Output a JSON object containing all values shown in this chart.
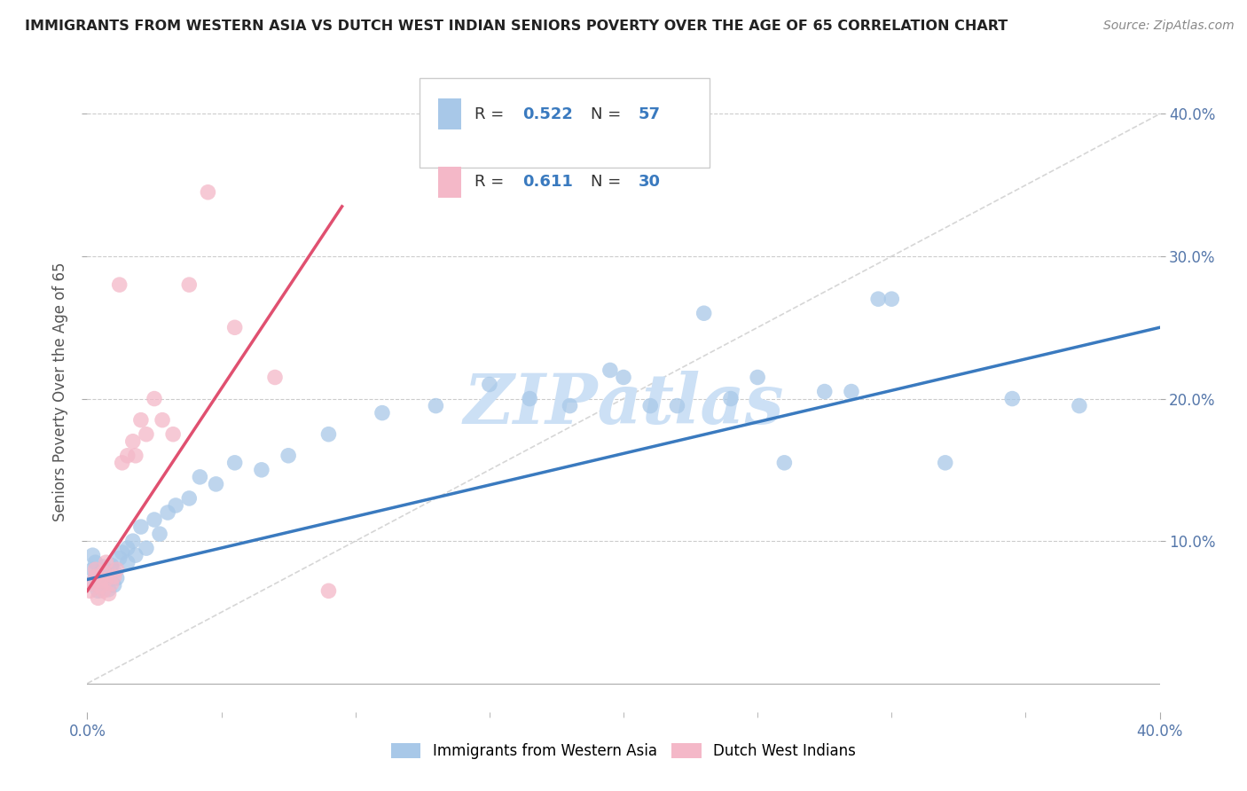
{
  "title": "IMMIGRANTS FROM WESTERN ASIA VS DUTCH WEST INDIAN SENIORS POVERTY OVER THE AGE OF 65 CORRELATION CHART",
  "source": "Source: ZipAtlas.com",
  "ylabel": "Seniors Poverty Over the Age of 65",
  "xlim": [
    0.0,
    0.4
  ],
  "ylim": [
    -0.02,
    0.43
  ],
  "x_ticks_major": [
    0.0,
    0.4
  ],
  "x_ticks_minor": [
    0.05,
    0.1,
    0.15,
    0.2,
    0.25,
    0.3,
    0.35
  ],
  "x_tick_labels_major": [
    "0.0%",
    "40.0%"
  ],
  "y_ticks": [
    0.1,
    0.2,
    0.3,
    0.4
  ],
  "y_tick_labels_left": [
    "",
    "",
    "",
    ""
  ],
  "y_tick_labels_right": [
    "10.0%",
    "20.0%",
    "30.0%",
    "40.0%"
  ],
  "color_blue": "#a8c8e8",
  "color_pink": "#f4b8c8",
  "color_line_blue": "#3a7abf",
  "color_line_pink": "#e05070",
  "color_diag": "#cccccc",
  "watermark_color": "#cce0f5",
  "blue_scatter_x": [
    0.001,
    0.002,
    0.002,
    0.003,
    0.003,
    0.004,
    0.004,
    0.005,
    0.005,
    0.006,
    0.006,
    0.007,
    0.008,
    0.008,
    0.009,
    0.01,
    0.01,
    0.011,
    0.012,
    0.013,
    0.015,
    0.015,
    0.017,
    0.018,
    0.02,
    0.022,
    0.025,
    0.027,
    0.03,
    0.033,
    0.038,
    0.042,
    0.048,
    0.055,
    0.065,
    0.075,
    0.09,
    0.11,
    0.13,
    0.15,
    0.165,
    0.18,
    0.195,
    0.21,
    0.23,
    0.25,
    0.275,
    0.3,
    0.32,
    0.345,
    0.37,
    0.295,
    0.285,
    0.26,
    0.24,
    0.22,
    0.2
  ],
  "blue_scatter_y": [
    0.07,
    0.08,
    0.09,
    0.075,
    0.085,
    0.065,
    0.072,
    0.068,
    0.078,
    0.073,
    0.082,
    0.071,
    0.076,
    0.066,
    0.083,
    0.069,
    0.079,
    0.074,
    0.088,
    0.092,
    0.095,
    0.085,
    0.1,
    0.09,
    0.11,
    0.095,
    0.115,
    0.105,
    0.12,
    0.125,
    0.13,
    0.145,
    0.14,
    0.155,
    0.15,
    0.16,
    0.175,
    0.19,
    0.195,
    0.21,
    0.2,
    0.195,
    0.22,
    0.195,
    0.26,
    0.215,
    0.205,
    0.27,
    0.155,
    0.2,
    0.195,
    0.27,
    0.205,
    0.155,
    0.2,
    0.195,
    0.215
  ],
  "pink_scatter_x": [
    0.001,
    0.002,
    0.003,
    0.003,
    0.004,
    0.005,
    0.005,
    0.006,
    0.006,
    0.007,
    0.007,
    0.008,
    0.009,
    0.01,
    0.011,
    0.012,
    0.013,
    0.015,
    0.017,
    0.018,
    0.02,
    0.022,
    0.025,
    0.028,
    0.032,
    0.038,
    0.045,
    0.055,
    0.07,
    0.09
  ],
  "pink_scatter_y": [
    0.065,
    0.07,
    0.075,
    0.08,
    0.06,
    0.072,
    0.068,
    0.078,
    0.065,
    0.073,
    0.085,
    0.063,
    0.07,
    0.075,
    0.08,
    0.28,
    0.155,
    0.16,
    0.17,
    0.16,
    0.185,
    0.175,
    0.2,
    0.185,
    0.175,
    0.28,
    0.345,
    0.25,
    0.215,
    0.065
  ],
  "blue_line_x0": 0.0,
  "blue_line_x1": 0.4,
  "blue_line_y0": 0.073,
  "blue_line_y1": 0.25,
  "pink_line_x0": 0.0,
  "pink_line_x1": 0.095,
  "pink_line_y0": 0.065,
  "pink_line_y1": 0.335
}
